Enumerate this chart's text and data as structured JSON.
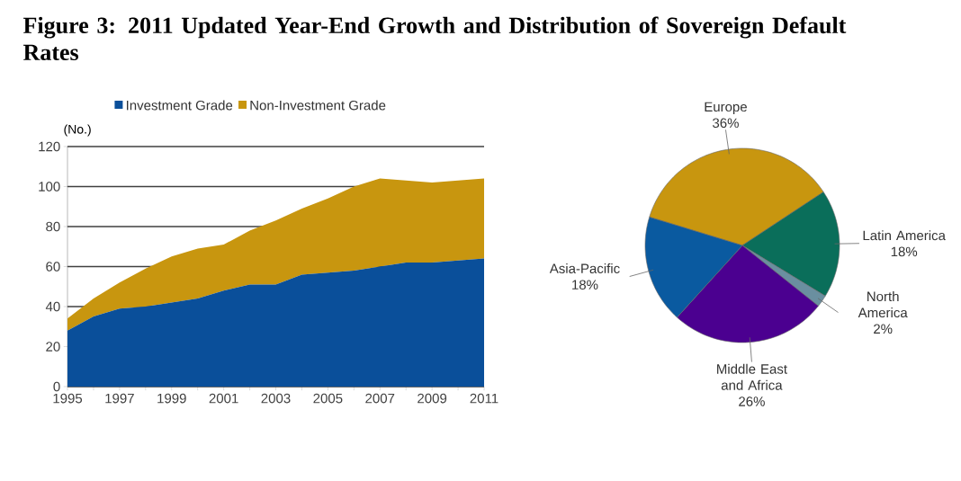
{
  "chart_data": [
    {
      "type": "area",
      "title": "Figure 3: 2011 Updated Year-End Growth and Distribution of Sovereign Default Rates",
      "ylabel": "(No.)",
      "stacked": true,
      "x": [
        1995,
        1996,
        1997,
        1998,
        1999,
        2000,
        2001,
        2002,
        2003,
        2004,
        2005,
        2006,
        2007,
        2008,
        2009,
        2010,
        2011
      ],
      "series": [
        {
          "name": "Investment Grade",
          "color": "#0a4f9a",
          "values": [
            28,
            35,
            39,
            40,
            42,
            44,
            48,
            51,
            51,
            56,
            57,
            58,
            60,
            62,
            62,
            63,
            64
          ]
        },
        {
          "name": "Non-Investment Grade",
          "color": "#c8960f",
          "values": [
            6,
            9,
            13,
            19,
            23,
            25,
            23,
            27,
            32,
            33,
            37,
            42,
            44,
            41,
            40,
            40,
            40
          ]
        }
      ],
      "xlim": [
        1995,
        2011
      ],
      "xticks": [
        1995,
        {
          "value": 1996,
          "label": null
        },
        1997,
        {
          "value": 1998,
          "label": null
        },
        1999,
        {
          "value": 2000,
          "label": null
        },
        2001,
        {
          "value": 2002,
          "label": null
        },
        2003,
        {
          "value": 2004,
          "label": null
        },
        2005,
        {
          "value": 2006,
          "label": null
        },
        2007,
        {
          "value": 2008,
          "label": null
        },
        2009,
        {
          "value": 2010,
          "label": null
        },
        2011
      ],
      "ylim": [
        0,
        120
      ],
      "yticks": [
        0,
        20,
        40,
        60,
        80,
        100,
        120
      ],
      "grid": "y",
      "legend": "top"
    },
    {
      "type": "pie",
      "categories": [
        "Europe",
        "Latin America",
        "North America",
        "Middle East and Africa",
        "Asia-Pacific"
      ],
      "values": [
        36,
        18,
        2,
        26,
        18
      ],
      "colors": [
        "#c8960f",
        "#0a6e5a",
        "#6a8fa0",
        "#4b0090",
        "#0a5aa0"
      ],
      "value_labels": [
        "36%",
        "18%",
        "2%",
        "26%",
        "18%"
      ]
    }
  ]
}
